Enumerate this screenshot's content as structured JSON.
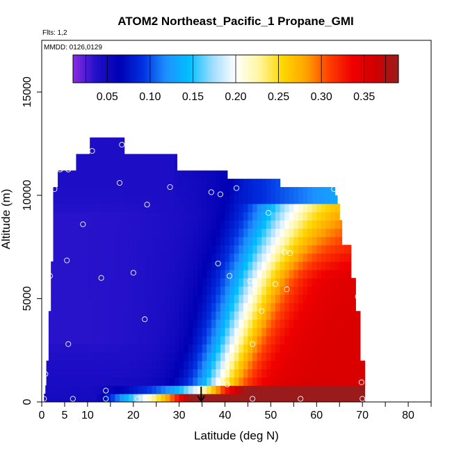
{
  "chart_data": {
    "type": "heatmap",
    "title": "ATOM2 Northeast_Pacific_1 Propane_GMI",
    "flights_label": "Flts: 1,2",
    "dates_label": "MMDD: 0126,0129",
    "xlabel": "Latitude (deg N)",
    "ylabel": "Altitude (m)",
    "xlim": [
      0,
      85
    ],
    "ylim": [
      0,
      17500
    ],
    "x_ticks": [
      0,
      5,
      10,
      20,
      30,
      40,
      50,
      60,
      70,
      80
    ],
    "y_ticks": [
      0,
      5000,
      10000,
      15000
    ],
    "colorbar": {
      "range": [
        0.01,
        0.39
      ],
      "ticks": [
        "0.05",
        "0.10",
        "0.15",
        "0.20",
        "0.25",
        "0.30",
        "0.35"
      ],
      "colors": [
        "#8a2be2",
        "#2010c8",
        "#0000b4",
        "#0030e0",
        "#1e90ff",
        "#00bfff",
        "#a0dcff",
        "#ffffff",
        "#fff6a0",
        "#ffd700",
        "#ffa500",
        "#ff4000",
        "#f00000",
        "#d00000",
        "#9a1b1b"
      ]
    },
    "marker": {
      "x": 34.8,
      "label": "arrow"
    },
    "samples": [
      {
        "lat": 0.5,
        "alt": 150
      },
      {
        "lat": 6.8,
        "alt": 150
      },
      {
        "lat": 14.0,
        "alt": 150
      },
      {
        "lat": 21.0,
        "alt": 150
      },
      {
        "lat": 46.0,
        "alt": 150
      },
      {
        "lat": 56.5,
        "alt": 150
      },
      {
        "lat": 70.0,
        "alt": 150
      },
      {
        "lat": 14.0,
        "alt": 550
      },
      {
        "lat": 40.5,
        "alt": 850
      },
      {
        "lat": 69.8,
        "alt": 950
      },
      {
        "lat": 0.8,
        "alt": 1350
      },
      {
        "lat": 40.3,
        "alt": 1450
      },
      {
        "lat": 5.8,
        "alt": 2800
      },
      {
        "lat": 46.0,
        "alt": 2800
      },
      {
        "lat": 22.5,
        "alt": 4000
      },
      {
        "lat": 48.0,
        "alt": 4400
      },
      {
        "lat": 1.3,
        "alt": 4700
      },
      {
        "lat": 69.0,
        "alt": 5100
      },
      {
        "lat": 53.5,
        "alt": 5450
      },
      {
        "lat": 51.0,
        "alt": 5700
      },
      {
        "lat": 45.5,
        "alt": 5850
      },
      {
        "lat": 1.8,
        "alt": 6100
      },
      {
        "lat": 13.0,
        "alt": 6000
      },
      {
        "lat": 20.0,
        "alt": 6250
      },
      {
        "lat": 41.0,
        "alt": 6100
      },
      {
        "lat": 38.5,
        "alt": 6700
      },
      {
        "lat": 5.5,
        "alt": 6850
      },
      {
        "lat": 53.0,
        "alt": 7250
      },
      {
        "lat": 54.2,
        "alt": 7200
      },
      {
        "lat": 9.0,
        "alt": 8600
      },
      {
        "lat": 49.5,
        "alt": 9150
      },
      {
        "lat": 23.0,
        "alt": 9550
      },
      {
        "lat": 37.0,
        "alt": 10150
      },
      {
        "lat": 39.0,
        "alt": 10050
      },
      {
        "lat": 42.5,
        "alt": 10350
      },
      {
        "lat": 28.0,
        "alt": 10400
      },
      {
        "lat": 17.0,
        "alt": 10600
      },
      {
        "lat": 63.8,
        "alt": 10300
      },
      {
        "lat": 2.8,
        "alt": 10300
      },
      {
        "lat": 4.0,
        "alt": 11250
      },
      {
        "lat": 5.8,
        "alt": 11250
      },
      {
        "lat": 11.0,
        "alt": 12150
      },
      {
        "lat": 17.5,
        "alt": 12450
      }
    ]
  }
}
